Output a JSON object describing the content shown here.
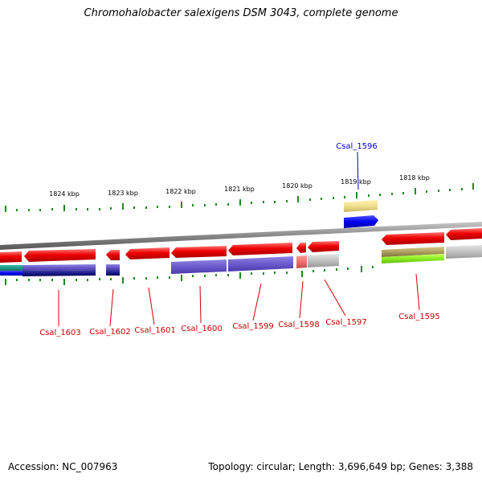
{
  "title": "Chromohalobacter salexigens DSM 3043, complete genome",
  "footer": {
    "accession": "Accession: NC_007963",
    "summary": "Topology: circular; Length: 3,696,649 bp; Genes: 3,388"
  },
  "scale_labels": [
    "1824 kbp",
    "1823 kbp",
    "1822 kbp",
    "1821 kbp",
    "1820 kbp",
    "1819 kbp",
    "1818 kbp"
  ],
  "genes": [
    {
      "name": "Csal_1603",
      "color": "#cc0000"
    },
    {
      "name": "Csal_1602",
      "color": "#cc0000"
    },
    {
      "name": "Csal_1601",
      "color": "#cc0000"
    },
    {
      "name": "Csal_1600",
      "color": "#cc0000"
    },
    {
      "name": "Csal_1599",
      "color": "#cc0000"
    },
    {
      "name": "Csal_1598",
      "color": "#cc0000"
    },
    {
      "name": "Csal_1597",
      "color": "#cc0000"
    },
    {
      "name": "Csal_1596",
      "color": "#0000cc"
    },
    {
      "name": "Csal_1595",
      "color": "#cc0000"
    }
  ],
  "colors": {
    "cds_red": "#ee1111",
    "cds_blue": "#0000ee",
    "backbone": "#888888",
    "ticks": "#228822"
  }
}
